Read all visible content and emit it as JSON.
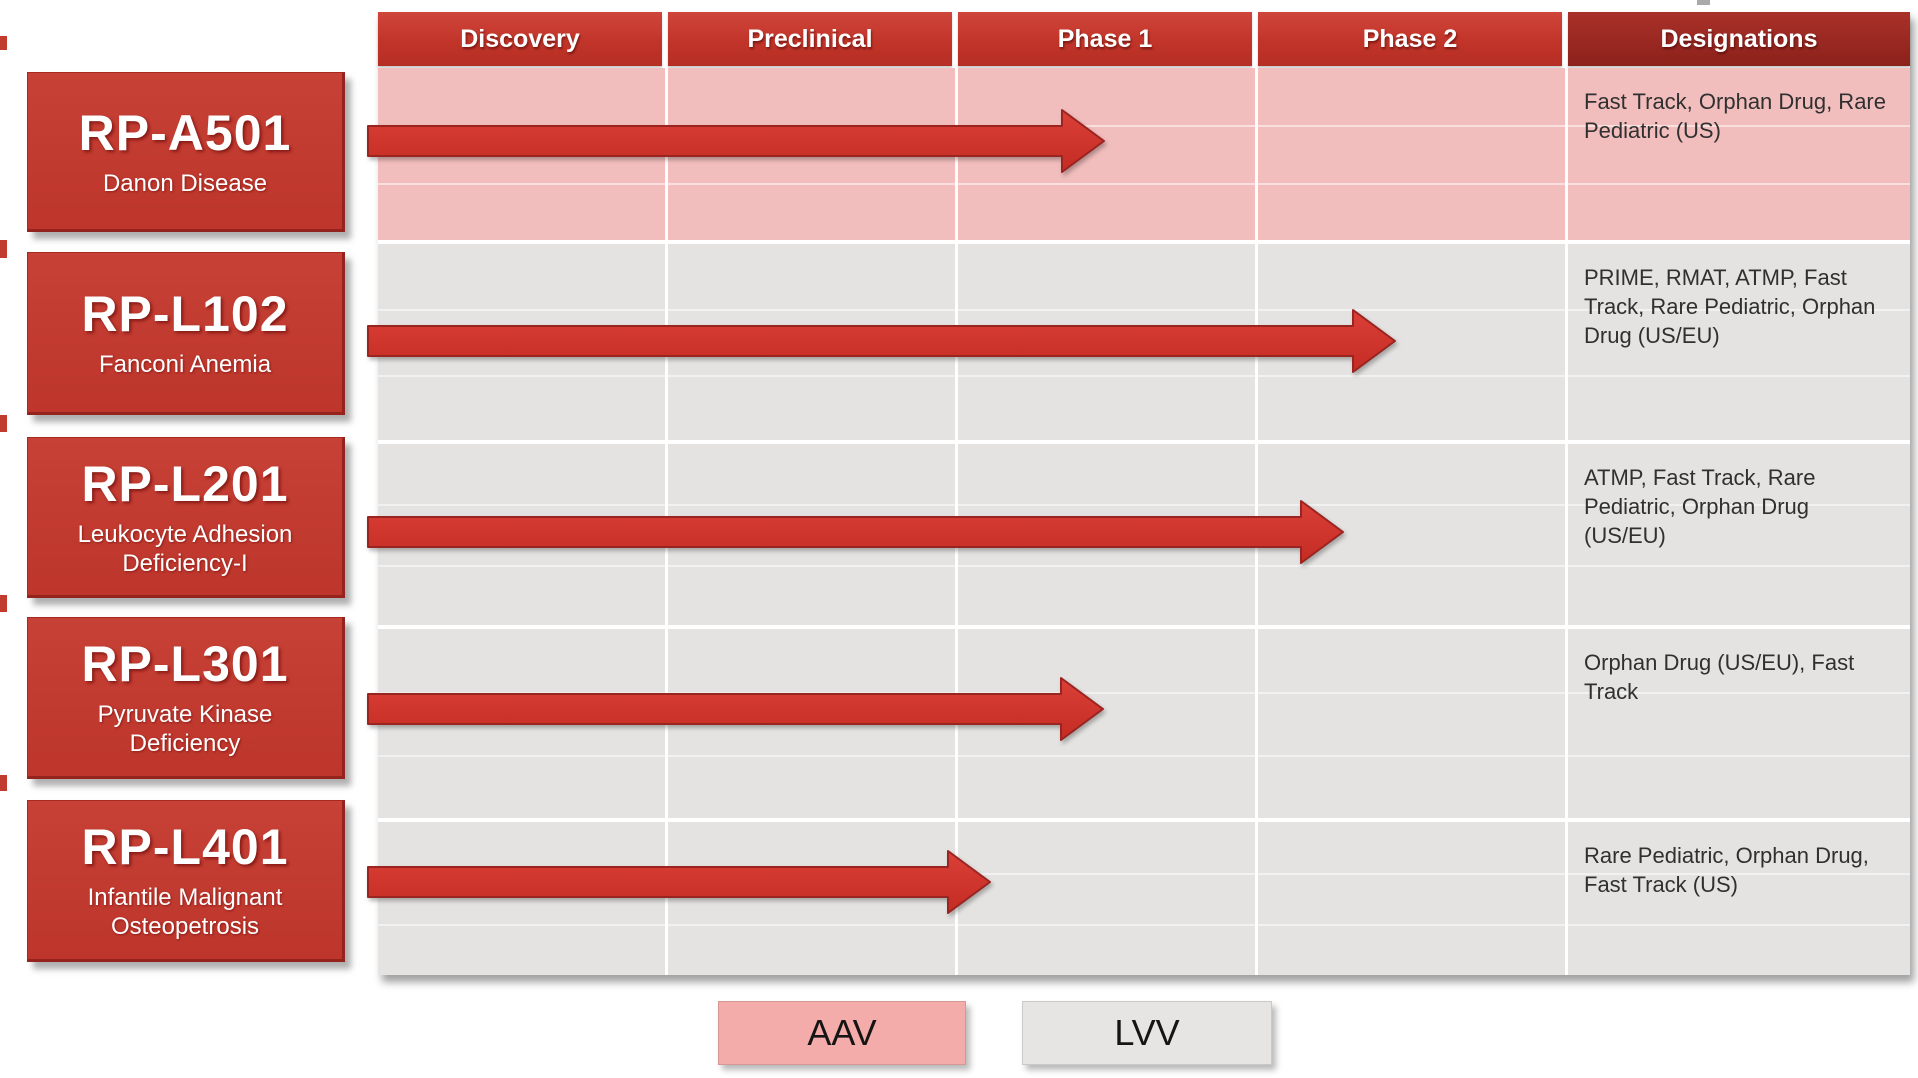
{
  "columns": [
    "Discovery",
    "Preclinical",
    "Phase 1",
    "Phase 2",
    "Designations"
  ],
  "programs": [
    {
      "code": "RP-A501",
      "disease": "Danon Disease",
      "vector": "AAV",
      "designations": "Fast Track, Orphan Drug, Rare Pediatric (US)",
      "progress_pct_of_phases": 61.2
    },
    {
      "code": "RP-L102",
      "disease": "Fanconi Anemia",
      "vector": "LVV",
      "designations": "PRIME, RMAT, ATMP, Fast Track, Rare Pediatric, Orphan Drug (US/EU)",
      "progress_pct_of_phases": 85.7
    },
    {
      "code": "RP-L201",
      "disease": "Leukocyte Adhesion Deficiency-I",
      "vector": "LVV",
      "designations": "ATMP, Fast Track, Rare Pediatric, Orphan Drug (US/EU)",
      "progress_pct_of_phases": 81.3
    },
    {
      "code": "RP-L301",
      "disease": "Pyruvate Kinase Deficiency",
      "vector": "LVV",
      "designations": "Orphan Drug (US/EU), Fast Track",
      "progress_pct_of_phases": 61.1
    },
    {
      "code": "RP-L401",
      "disease": "Infantile Malignant Osteopetrosis",
      "vector": "LVV",
      "designations": "Rare Pediatric, Orphan Drug, Fast Track (US)",
      "progress_pct_of_phases": 51.6
    }
  ],
  "legend": [
    {
      "label": "AAV",
      "color": "#f3aca9"
    },
    {
      "label": "LVV",
      "color": "#e6e5e3"
    }
  ],
  "colors": {
    "header_red": "#c23429",
    "designations_header": "#8c211b",
    "aav_row": "#f2bebd",
    "lvv_row": "#e4e3e2",
    "program_box_red": "#c33a2f",
    "arrow_fill": "#d2372e",
    "arrow_edge": "#9a2420",
    "text_dark": "#303030"
  },
  "chart_data": {
    "type": "bar",
    "orientation": "horizontal",
    "title": "Gene therapy pipeline: development stage reached per program",
    "categories": [
      "RP-A501 — Danon Disease",
      "RP-L102 — Fanconi Anemia",
      "RP-L201 — Leukocyte Adhesion Deficiency-I",
      "RP-L301 — Pyruvate Kinase Deficiency",
      "RP-L401 — Infantile Malignant Osteopetrosis"
    ],
    "x_axis_stages": [
      "Discovery",
      "Preclinical",
      "Phase 1",
      "Phase 2"
    ],
    "values_stage_units": [
      2.5,
      3.45,
      3.28,
      2.49,
      2.12
    ],
    "value_scale": "arrow extent; 1 = end of Discovery, 2 = end of Preclinical, 3 = end of Phase 1, 4 = end of Phase 2",
    "series": [
      {
        "name": "AAV",
        "row_indexes": [
          0
        ]
      },
      {
        "name": "LVV",
        "row_indexes": [
          1,
          2,
          3,
          4
        ]
      }
    ],
    "legend_position": "bottom",
    "annotations_designations": [
      "Fast Track, Orphan Drug, Rare Pediatric (US)",
      "PRIME, RMAT, ATMP, Fast Track, Rare Pediatric, Orphan Drug (US/EU)",
      "ATMP, Fast Track, Rare Pediatric, Orphan Drug (US/EU)",
      "Orphan Drug (US/EU), Fast Track",
      "Rare Pediatric, Orphan Drug, Fast Track (US)"
    ]
  }
}
